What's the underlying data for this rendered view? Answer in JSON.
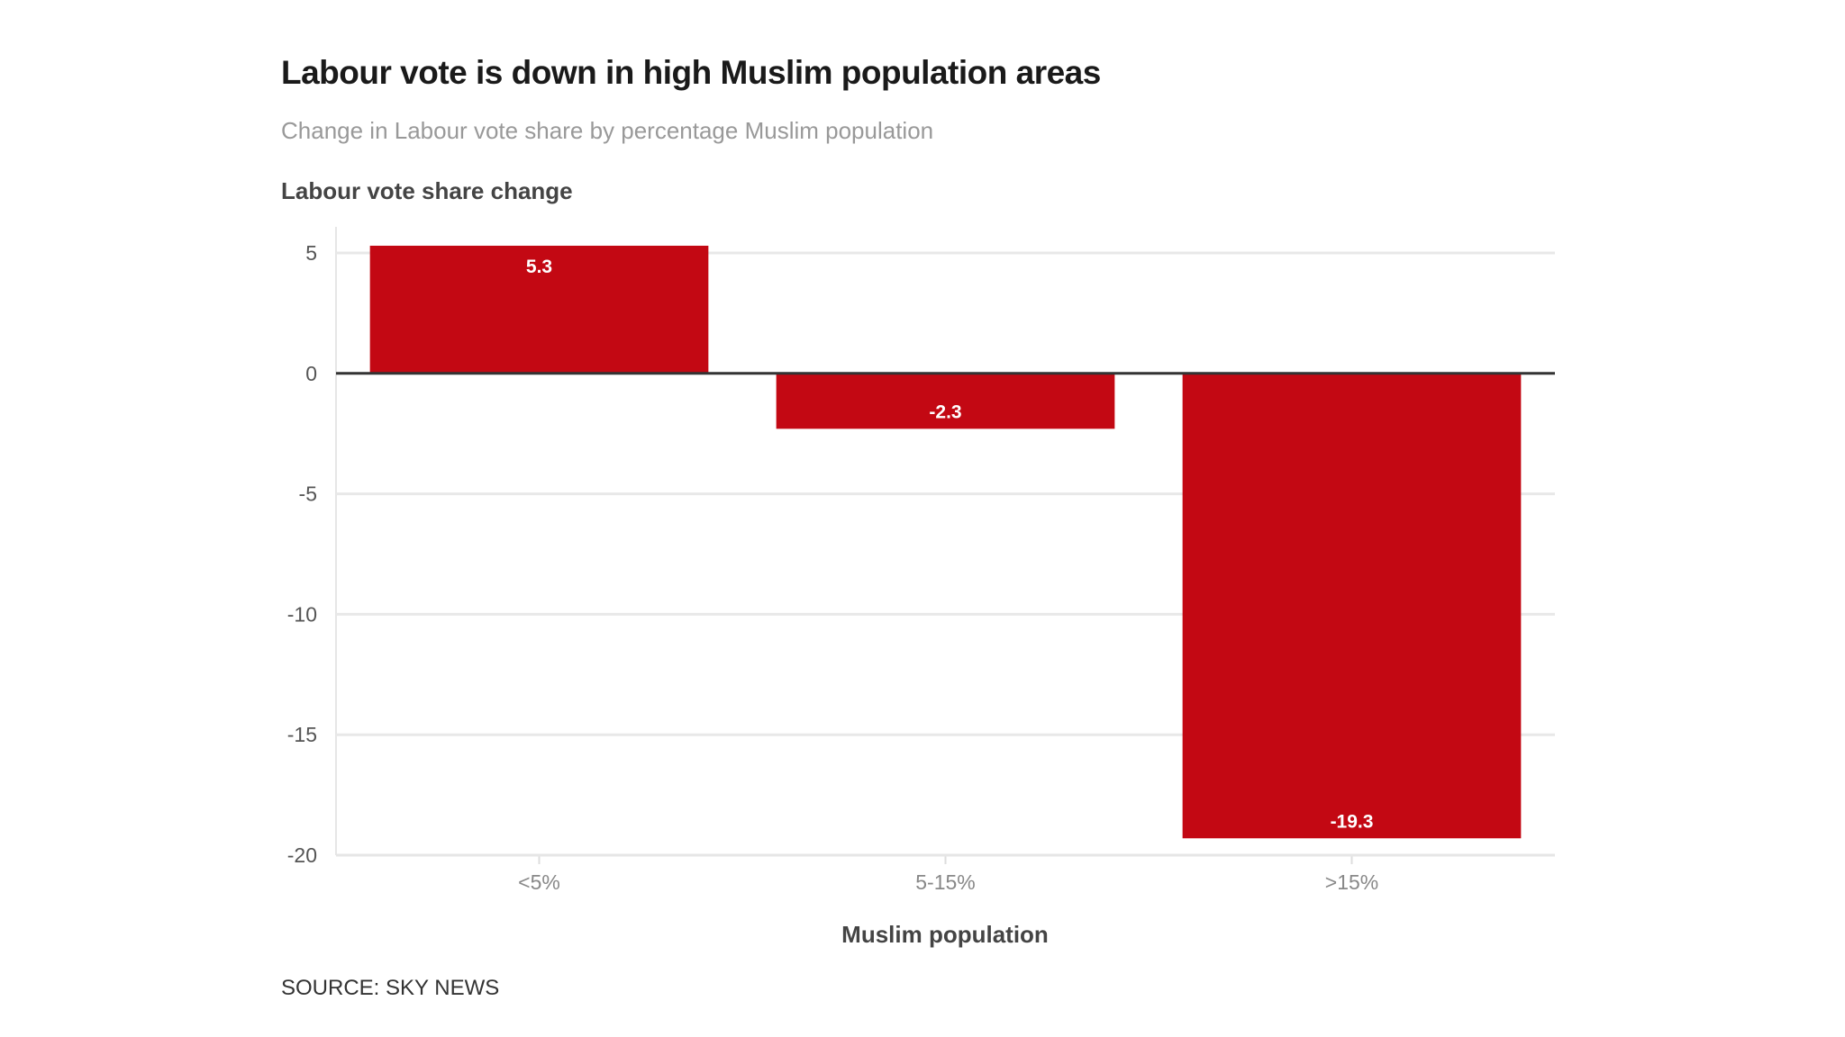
{
  "chart_data": {
    "type": "bar",
    "title": "Labour vote is down in high Muslim population areas",
    "subtitle": "Change in Labour vote share by percentage Muslim population",
    "ylabel": "Labour vote share change",
    "xlabel": "Muslim population",
    "categories": [
      "<5%",
      "5-15%",
      ">15%"
    ],
    "values": [
      5.3,
      -2.3,
      -19.3
    ],
    "data_labels": [
      "5.3",
      "-2.3",
      "-19.3"
    ],
    "ylim": [
      -20,
      5
    ],
    "yticks": [
      5,
      0,
      -5,
      -10,
      -15,
      -20
    ],
    "grid": true,
    "bar_color": "#c30813",
    "source": "SOURCE: SKY NEWS"
  }
}
